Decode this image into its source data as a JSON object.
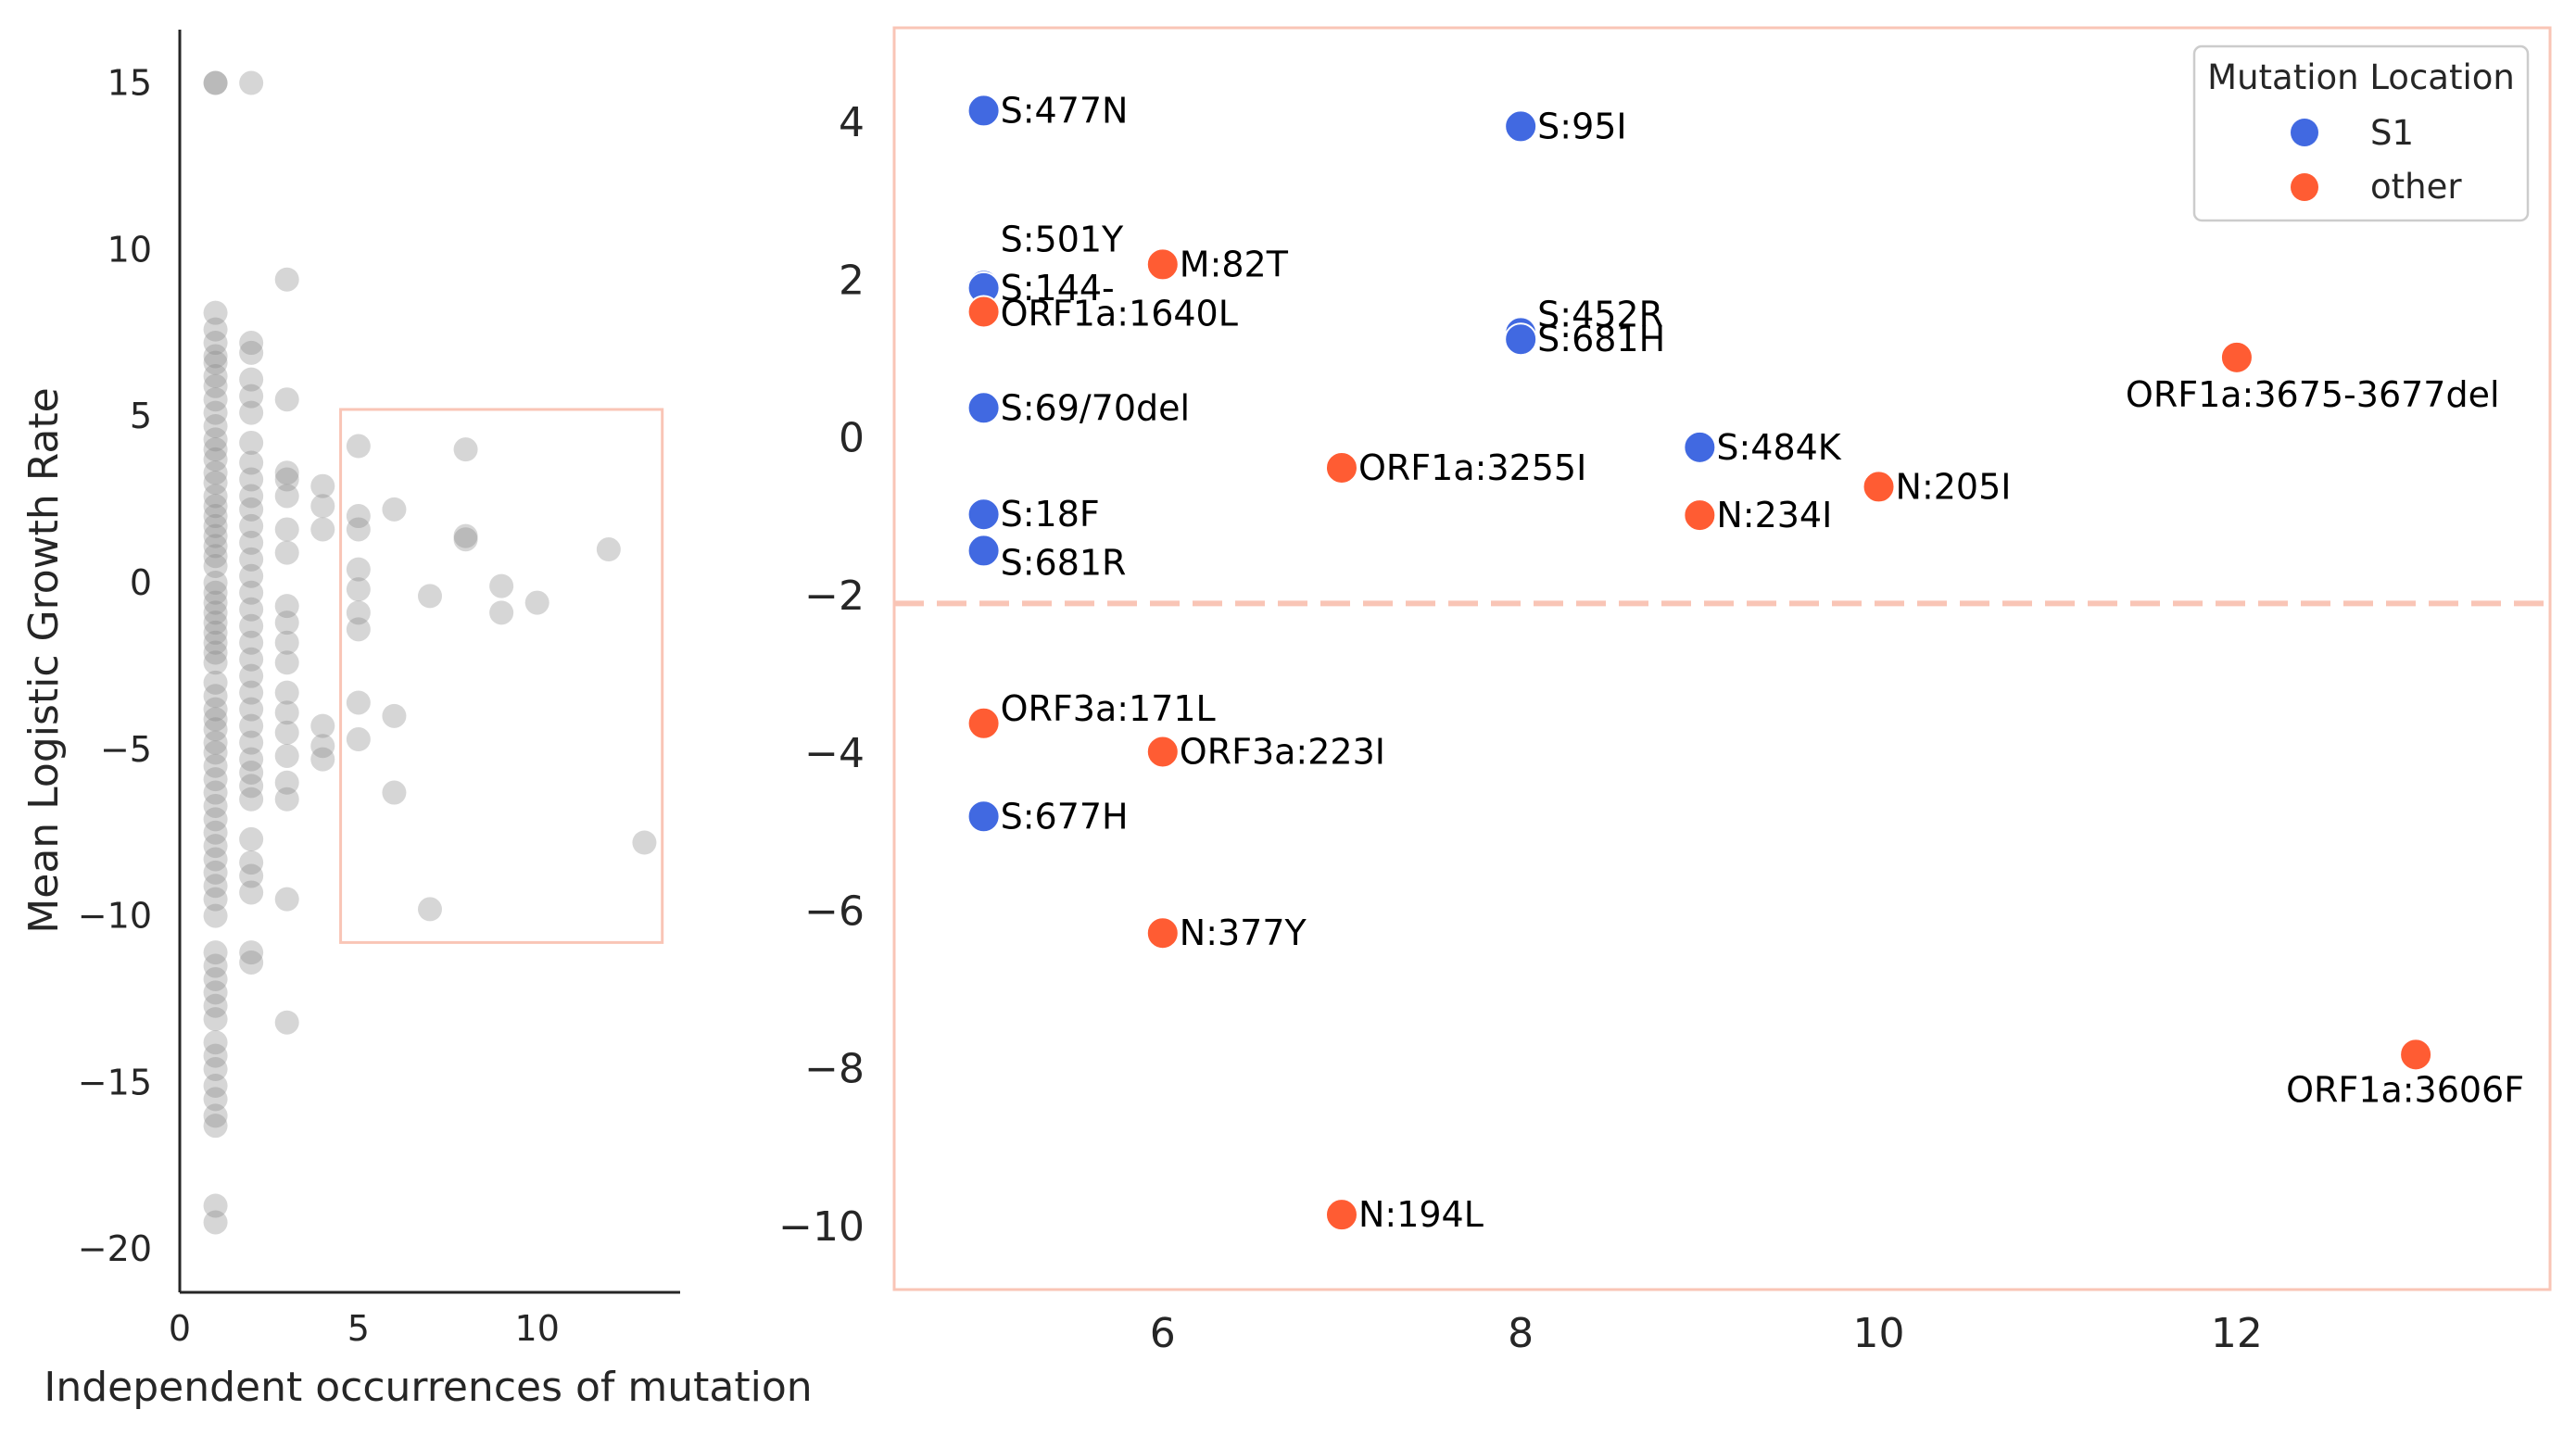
{
  "chart_data": [
    {
      "type": "scatter",
      "xlabel": "Independent occurrences of mutation",
      "ylabel": "Mean Logistic Growth Rate",
      "xlim": [
        0,
        14
      ],
      "ylim": [
        -21.3,
        16.6
      ],
      "xticks": [
        0,
        5,
        10
      ],
      "yticks": [
        -20,
        -15,
        -10,
        -5,
        0,
        5,
        10,
        15
      ],
      "point_color": "#808080",
      "highlight_box": {
        "x": [
          4.5,
          13.5
        ],
        "y": [
          -10.8,
          5.2
        ],
        "color": "#f9c5b6"
      },
      "points": [
        [
          1,
          15
        ],
        [
          1,
          15
        ],
        [
          2,
          15
        ],
        [
          1,
          8.1
        ],
        [
          1,
          7.6
        ],
        [
          1,
          7.2
        ],
        [
          1,
          6.8
        ],
        [
          1,
          6.6
        ],
        [
          1,
          6.2
        ],
        [
          1,
          5.9
        ],
        [
          1,
          5.5
        ],
        [
          1,
          5.1
        ],
        [
          1,
          4.7
        ],
        [
          1,
          4.3
        ],
        [
          1,
          4.0
        ],
        [
          1,
          3.7
        ],
        [
          1,
          3.3
        ],
        [
          1,
          3.0
        ],
        [
          1,
          2.6
        ],
        [
          1,
          2.3
        ],
        [
          1,
          2.0
        ],
        [
          1,
          1.7
        ],
        [
          1,
          1.4
        ],
        [
          1,
          1.1
        ],
        [
          1,
          0.8
        ],
        [
          1,
          0.5
        ],
        [
          1,
          0.0
        ],
        [
          1,
          -0.3
        ],
        [
          1,
          -0.6
        ],
        [
          1,
          -0.9
        ],
        [
          1,
          -1.2
        ],
        [
          1,
          -1.5
        ],
        [
          1,
          -1.8
        ],
        [
          1,
          -2.1
        ],
        [
          1,
          -2.4
        ],
        [
          1,
          -3.0
        ],
        [
          1,
          -3.4
        ],
        [
          1,
          -3.8
        ],
        [
          1,
          -4.1
        ],
        [
          1,
          -4.4
        ],
        [
          1,
          -4.8
        ],
        [
          1,
          -5.1
        ],
        [
          1,
          -5.5
        ],
        [
          1,
          -5.9
        ],
        [
          1,
          -6.3
        ],
        [
          1,
          -6.7
        ],
        [
          1,
          -7.1
        ],
        [
          1,
          -7.5
        ],
        [
          1,
          -7.9
        ],
        [
          1,
          -8.3
        ],
        [
          1,
          -8.7
        ],
        [
          1,
          -9.1
        ],
        [
          1,
          -9.5
        ],
        [
          1,
          -10.0
        ],
        [
          1,
          -11.1
        ],
        [
          1,
          -11.5
        ],
        [
          1,
          -11.9
        ],
        [
          1,
          -12.3
        ],
        [
          1,
          -12.7
        ],
        [
          1,
          -13.1
        ],
        [
          1,
          -13.8
        ],
        [
          1,
          -14.2
        ],
        [
          1,
          -14.6
        ],
        [
          1,
          -15.1
        ],
        [
          1,
          -15.5
        ],
        [
          1,
          -16.0
        ],
        [
          1,
          -16.3
        ],
        [
          1,
          -18.7
        ],
        [
          1,
          -19.2
        ],
        [
          2,
          7.2
        ],
        [
          2,
          6.9
        ],
        [
          2,
          6.1
        ],
        [
          2,
          5.6
        ],
        [
          2,
          5.1
        ],
        [
          2,
          4.2
        ],
        [
          2,
          3.6
        ],
        [
          2,
          3.1
        ],
        [
          2,
          2.6
        ],
        [
          2,
          2.2
        ],
        [
          2,
          1.7
        ],
        [
          2,
          1.2
        ],
        [
          2,
          0.7
        ],
        [
          2,
          0.2
        ],
        [
          2,
          -0.3
        ],
        [
          2,
          -0.8
        ],
        [
          2,
          -1.3
        ],
        [
          2,
          -1.8
        ],
        [
          2,
          -2.3
        ],
        [
          2,
          -2.8
        ],
        [
          2,
          -3.3
        ],
        [
          2,
          -3.8
        ],
        [
          2,
          -4.3
        ],
        [
          2,
          -4.8
        ],
        [
          2,
          -5.3
        ],
        [
          2,
          -5.7
        ],
        [
          2,
          -6.1
        ],
        [
          2,
          -6.5
        ],
        [
          2,
          -7.7
        ],
        [
          2,
          -8.4
        ],
        [
          2,
          -8.8
        ],
        [
          2,
          -9.3
        ],
        [
          2,
          -11.1
        ],
        [
          2,
          -11.4
        ],
        [
          3,
          9.1
        ],
        [
          3,
          5.5
        ],
        [
          3,
          3.3
        ],
        [
          3,
          3.1
        ],
        [
          3,
          2.6
        ],
        [
          3,
          1.6
        ],
        [
          3,
          0.9
        ],
        [
          3,
          -0.7
        ],
        [
          3,
          -1.2
        ],
        [
          3,
          -1.8
        ],
        [
          3,
          -2.4
        ],
        [
          3,
          -3.3
        ],
        [
          3,
          -3.9
        ],
        [
          3,
          -4.5
        ],
        [
          3,
          -5.2
        ],
        [
          3,
          -6.0
        ],
        [
          3,
          -6.5
        ],
        [
          3,
          -9.5
        ],
        [
          3,
          -13.2
        ],
        [
          4,
          2.9
        ],
        [
          4,
          2.3
        ],
        [
          4,
          1.6
        ],
        [
          4,
          -4.3
        ],
        [
          4,
          -4.9
        ],
        [
          4,
          -5.3
        ],
        [
          5,
          4.1
        ],
        [
          5,
          2.0
        ],
        [
          5,
          1.6
        ],
        [
          5,
          0.4
        ],
        [
          5,
          -0.2
        ],
        [
          5,
          -0.9
        ],
        [
          5,
          -1.4
        ],
        [
          5,
          -3.6
        ],
        [
          5,
          -4.7
        ],
        [
          6,
          2.2
        ],
        [
          6,
          -4.0
        ],
        [
          6,
          -6.3
        ],
        [
          7,
          -0.4
        ],
        [
          7,
          -9.8
        ],
        [
          8,
          4.0
        ],
        [
          8,
          1.4
        ],
        [
          8,
          1.3
        ],
        [
          9,
          -0.1
        ],
        [
          9,
          -0.9
        ],
        [
          10,
          -0.6
        ],
        [
          12,
          1.0
        ],
        [
          13,
          -7.8
        ]
      ]
    },
    {
      "type": "scatter",
      "xlabel": "",
      "ylabel": "",
      "xlim": [
        4.5,
        13.75
      ],
      "ylim": [
        -10.8,
        5.2
      ],
      "xticks": [
        6,
        8,
        10,
        12
      ],
      "yticks": [
        -10,
        -8,
        -6,
        -4,
        -2,
        0,
        2,
        4
      ],
      "frame_color": "#f9c5b6",
      "threshold": {
        "y": -2.1,
        "color": "#f9c5b6",
        "style": "dashed"
      },
      "legend": {
        "title": "Mutation Location",
        "position": "top-right",
        "entries": [
          {
            "key": "S1",
            "label": "S1",
            "color": "#4169e1"
          },
          {
            "key": "other",
            "label": "other",
            "color": "#ff5c33"
          }
        ]
      },
      "series": [
        {
          "name": "S1",
          "color": "#4169e1",
          "points": [
            {
              "x": 5,
              "y": 4.15,
              "label": "S:477N"
            },
            {
              "x": 8,
              "y": 3.95,
              "label": "S:95I"
            },
            {
              "x": 5,
              "y": 1.93,
              "label": "S:501Y"
            },
            {
              "x": 5,
              "y": 1.9,
              "label": "S:144-"
            },
            {
              "x": 8,
              "y": 1.33,
              "label": "S:452R"
            },
            {
              "x": 8,
              "y": 1.25,
              "label": "S:681H"
            },
            {
              "x": 5,
              "y": 0.38,
              "label": "S:69/70del"
            },
            {
              "x": 9,
              "y": -0.12,
              "label": "S:484K"
            },
            {
              "x": 5,
              "y": -0.97,
              "label": "S:18F"
            },
            {
              "x": 5,
              "y": -1.43,
              "label": "S:681R"
            },
            {
              "x": 5,
              "y": -4.8,
              "label": "S:677H"
            }
          ]
        },
        {
          "name": "other",
          "color": "#ff5c33",
          "points": [
            {
              "x": 6,
              "y": 2.2,
              "label": "M:82T"
            },
            {
              "x": 5,
              "y": 1.6,
              "label": "ORF1a:1640L"
            },
            {
              "x": 12,
              "y": 1.02,
              "label": "ORF1a:3675-3677del"
            },
            {
              "x": 7,
              "y": -0.38,
              "label": "ORF1a:3255I"
            },
            {
              "x": 10,
              "y": -0.62,
              "label": "N:205I"
            },
            {
              "x": 9,
              "y": -0.98,
              "label": "N:234I"
            },
            {
              "x": 5,
              "y": -3.62,
              "label": "ORF3a:171L"
            },
            {
              "x": 6,
              "y": -3.98,
              "label": "ORF3a:223I"
            },
            {
              "x": 6,
              "y": -6.28,
              "label": "N:377Y"
            },
            {
              "x": 13,
              "y": -7.82,
              "label": "ORF1a:3606F"
            },
            {
              "x": 7,
              "y": -9.85,
              "label": "N:194L"
            }
          ]
        }
      ]
    }
  ]
}
